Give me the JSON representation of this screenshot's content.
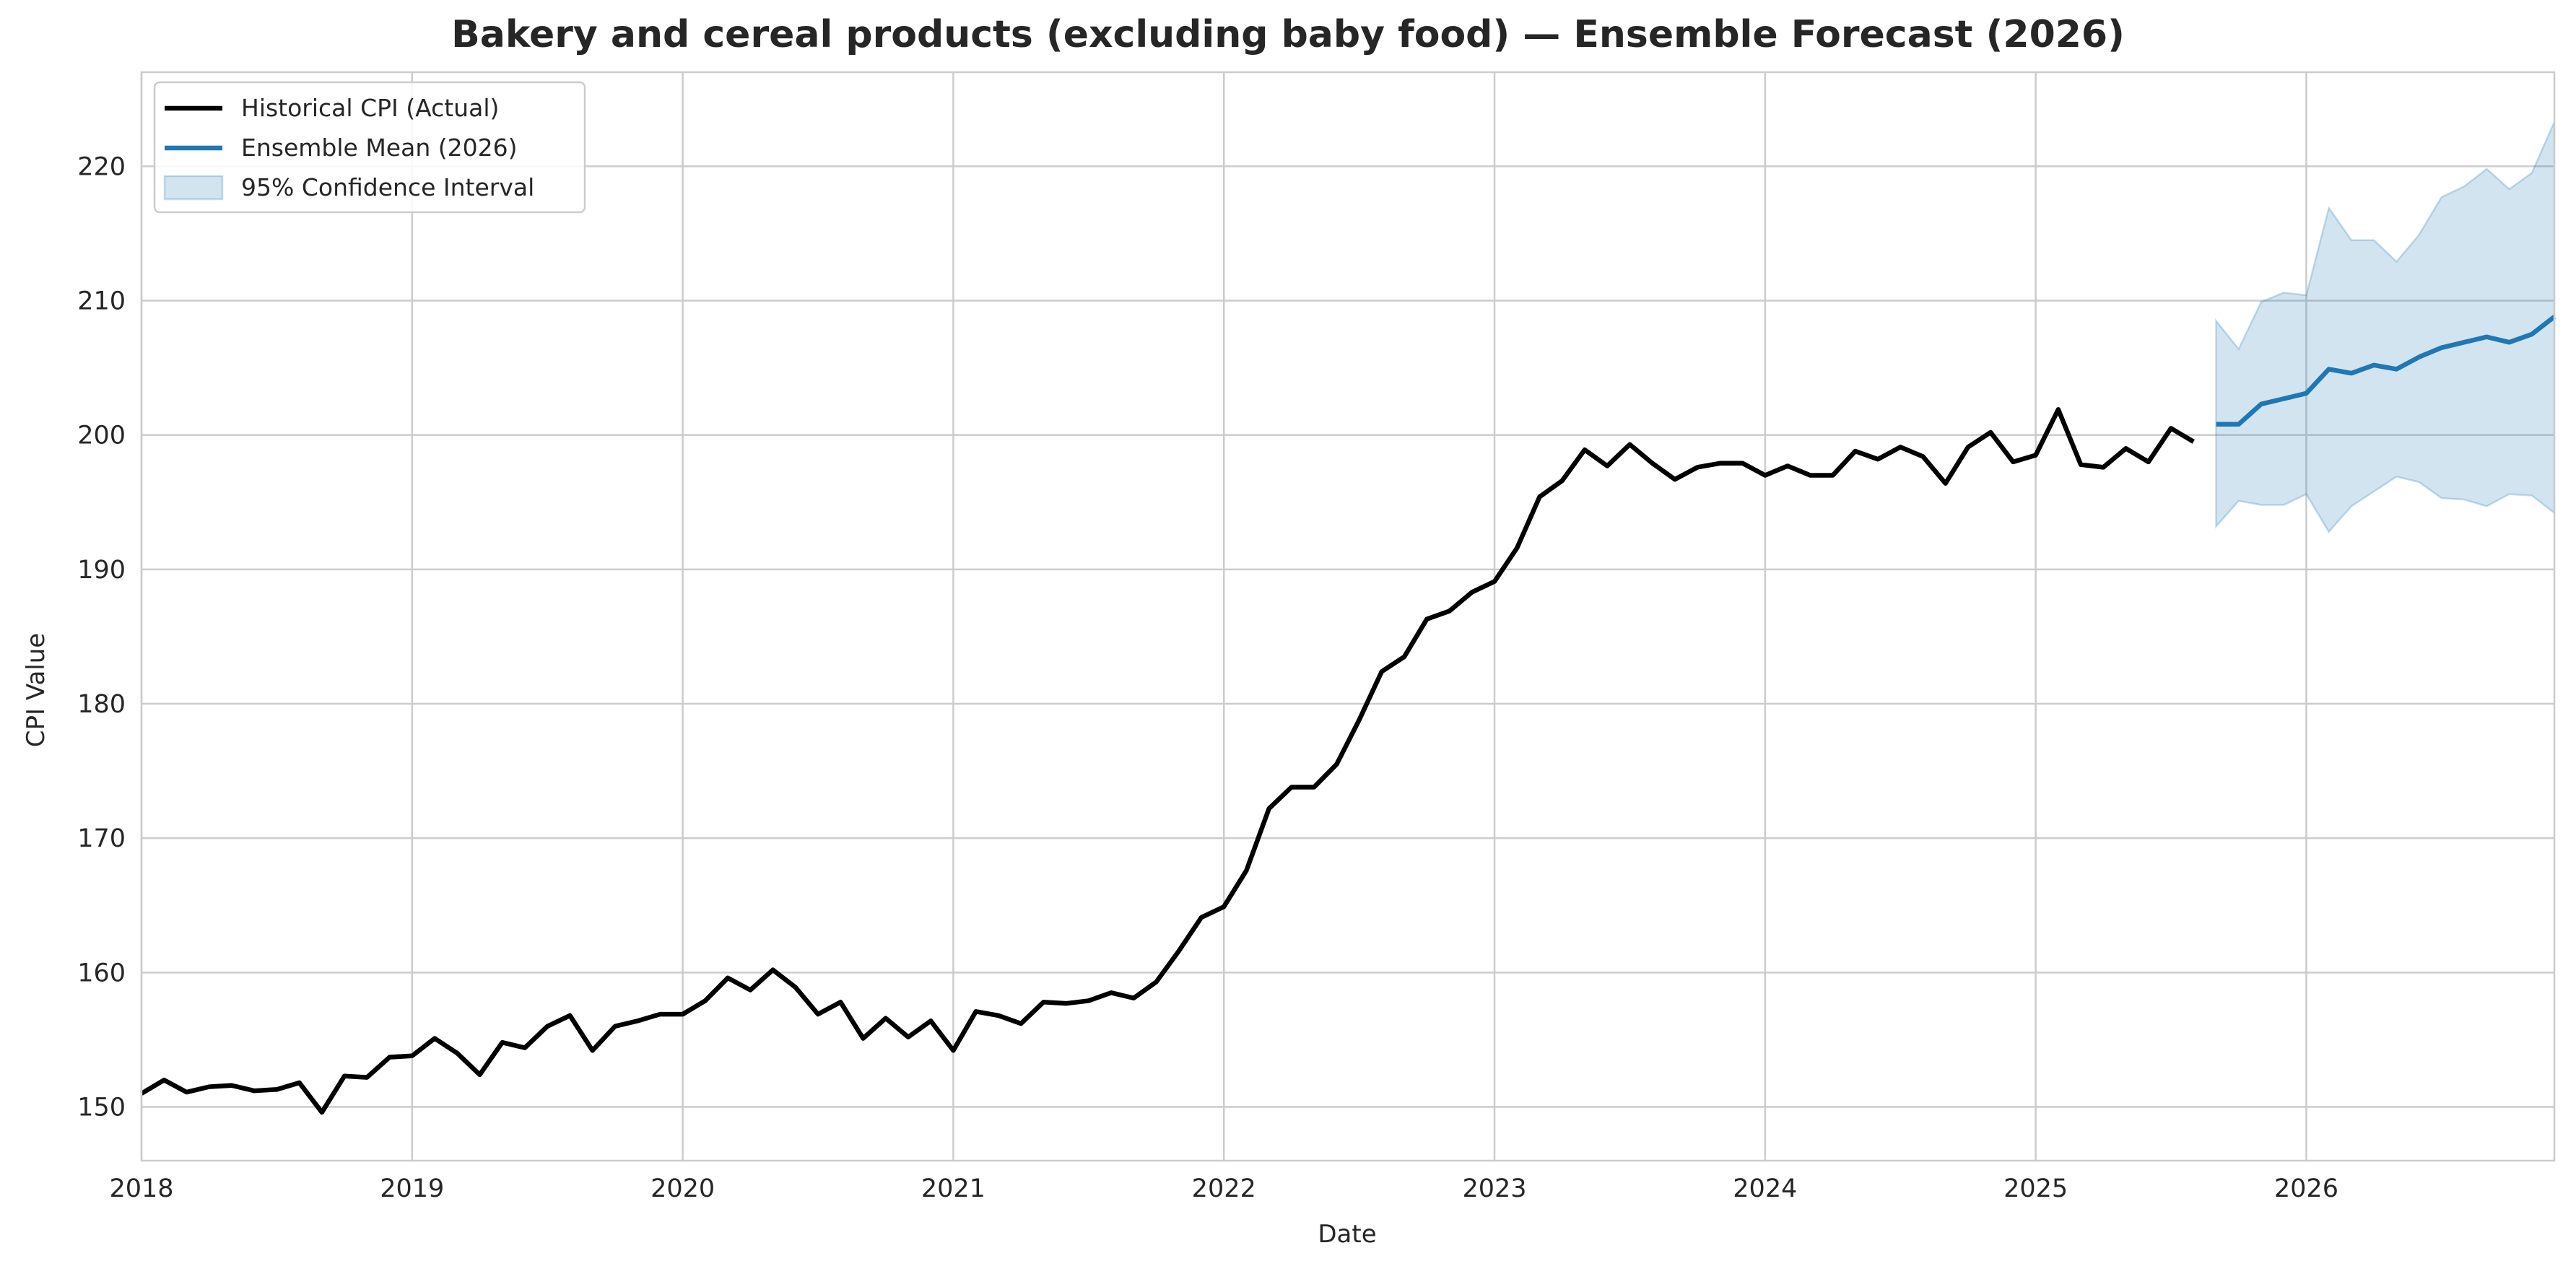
{
  "chart_data": {
    "type": "line",
    "title": "Bakery and cereal products (excluding baby food) — Ensemble Forecast (2026)",
    "xlabel": "Date",
    "ylabel": "CPI Value",
    "xlim": [
      "2018-01",
      "2026-12"
    ],
    "ylim": [
      146,
      227
    ],
    "x_ticks": [
      "2018",
      "2019",
      "2020",
      "2021",
      "2022",
      "2023",
      "2024",
      "2025",
      "2026"
    ],
    "y_ticks": [
      150,
      160,
      170,
      180,
      190,
      200,
      210,
      220
    ],
    "grid": true,
    "legend_position": "upper-left",
    "legend": [
      {
        "label": "Historical CPI (Actual)",
        "kind": "line",
        "color": "#000000"
      },
      {
        "label": "Ensemble Mean (2026)",
        "kind": "line",
        "color": "#1f77b4"
      },
      {
        "label": "95% Confidence Interval",
        "kind": "band",
        "color": "#1f77b4"
      }
    ],
    "series": [
      {
        "name": "Historical CPI (Actual)",
        "color": "#000000",
        "x": [
          "2018-01",
          "2018-02",
          "2018-03",
          "2018-04",
          "2018-05",
          "2018-06",
          "2018-07",
          "2018-08",
          "2018-09",
          "2018-10",
          "2018-11",
          "2018-12",
          "2019-01",
          "2019-02",
          "2019-03",
          "2019-04",
          "2019-05",
          "2019-06",
          "2019-07",
          "2019-08",
          "2019-09",
          "2019-10",
          "2019-11",
          "2019-12",
          "2020-01",
          "2020-02",
          "2020-03",
          "2020-04",
          "2020-05",
          "2020-06",
          "2020-07",
          "2020-08",
          "2020-09",
          "2020-10",
          "2020-11",
          "2020-12",
          "2021-01",
          "2021-02",
          "2021-03",
          "2021-04",
          "2021-05",
          "2021-06",
          "2021-07",
          "2021-08",
          "2021-09",
          "2021-10",
          "2021-11",
          "2021-12",
          "2022-01",
          "2022-02",
          "2022-03",
          "2022-04",
          "2022-05",
          "2022-06",
          "2022-07",
          "2022-08",
          "2022-09",
          "2022-10",
          "2022-11",
          "2022-12",
          "2023-01",
          "2023-02",
          "2023-03",
          "2023-04",
          "2023-05",
          "2023-06",
          "2023-07",
          "2023-08",
          "2023-09",
          "2023-10",
          "2023-11",
          "2023-12",
          "2024-01",
          "2024-02",
          "2024-03",
          "2024-04",
          "2024-05",
          "2024-06",
          "2024-07",
          "2024-08",
          "2024-09",
          "2024-10",
          "2024-11",
          "2024-12",
          "2025-01",
          "2025-02",
          "2025-03",
          "2025-04",
          "2025-05",
          "2025-06",
          "2025-07",
          "2025-08"
        ],
        "values": [
          151.0,
          152.0,
          151.1,
          151.5,
          151.6,
          151.2,
          151.3,
          151.8,
          149.6,
          152.3,
          152.2,
          153.7,
          153.8,
          155.1,
          154.0,
          152.4,
          154.8,
          154.4,
          156.0,
          156.8,
          154.2,
          156.0,
          156.4,
          156.9,
          156.9,
          157.9,
          159.6,
          158.7,
          160.2,
          158.9,
          156.9,
          157.8,
          155.1,
          156.6,
          155.2,
          156.4,
          154.2,
          157.1,
          156.8,
          156.2,
          157.8,
          157.7,
          157.9,
          158.5,
          158.1,
          159.3,
          161.6,
          164.1,
          164.9,
          167.6,
          172.2,
          173.8,
          173.8,
          175.5,
          178.8,
          182.4,
          183.5,
          186.3,
          186.9,
          188.3,
          189.1,
          191.6,
          195.4,
          196.6,
          198.9,
          197.7,
          199.3,
          197.9,
          196.7,
          197.6,
          197.9,
          197.9,
          197.0,
          197.7,
          197.0,
          197.0,
          198.8,
          198.2,
          199.1,
          198.4,
          196.4,
          199.1,
          200.2,
          198.0,
          198.5,
          201.9,
          197.8,
          197.6,
          199.0,
          198.0,
          200.5,
          199.5
        ]
      },
      {
        "name": "Ensemble Mean (2026)",
        "color": "#1f77b4",
        "x": [
          "2025-09",
          "2025-10",
          "2025-11",
          "2025-12",
          "2026-01",
          "2026-02",
          "2026-03",
          "2026-04",
          "2026-05",
          "2026-06",
          "2026-07",
          "2026-08",
          "2026-09",
          "2026-10",
          "2026-11",
          "2026-12"
        ],
        "values": [
          200.8,
          200.8,
          202.3,
          202.7,
          203.1,
          204.9,
          204.6,
          205.2,
          204.9,
          205.8,
          206.5,
          206.9,
          207.3,
          206.9,
          207.5,
          208.8
        ],
        "lower": [
          193.2,
          195.1,
          194.8,
          194.8,
          195.6,
          192.8,
          194.7,
          195.8,
          196.9,
          196.5,
          195.3,
          195.2,
          194.7,
          195.6,
          195.5,
          194.2
        ],
        "upper": [
          208.5,
          206.4,
          209.9,
          210.6,
          210.4,
          216.9,
          214.5,
          214.5,
          212.9,
          214.9,
          217.7,
          218.5,
          219.8,
          218.3,
          219.5,
          223.3
        ]
      }
    ]
  }
}
